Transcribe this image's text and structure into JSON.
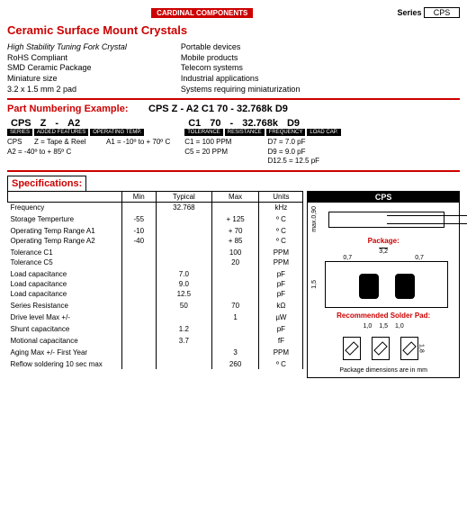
{
  "header": {
    "brand": "CARDINAL COMPONENTS",
    "series_label": "Series",
    "series_value": "CPS"
  },
  "title": "Ceramic Surface Mount Crystals",
  "features_left": [
    "High Stability Tuning Fork Crystal",
    "RoHS Compliant",
    "SMD Ceramic Package",
    "Miniature size",
    "3.2 x 1.5 mm 2 pad"
  ],
  "features_right": [
    "Portable devices",
    "Mobile products",
    "Telecom systems",
    "Industrial applications",
    "Systems requiring miniaturization"
  ],
  "pn": {
    "title": "Part Numbering Example:",
    "example": "CPS Z - A2  C1 70 - 32.768k D9",
    "left": {
      "heads": [
        "CPS",
        "Z",
        "-",
        "A2"
      ],
      "labels": [
        "SERIES",
        "ADDED FEATURES",
        "OPERATING TEMP."
      ],
      "body": [
        "CPS",
        "Z = Tape & Reel",
        "A1 = -10º to + 70º C",
        "A2 = -40º to + 85º C"
      ]
    },
    "right": {
      "heads": [
        "C1",
        "70",
        "-",
        "32.768k",
        "D9"
      ],
      "labels": [
        "TOLERANCE",
        "RESISTANCE",
        "FREQUENCY",
        "LOAD CAP."
      ],
      "body_left": [
        "C1 = 100 PPM",
        "C5 = 20 PPM"
      ],
      "body_right": [
        "D7 = 7.0 pF",
        "D9 = 9.0 pF",
        "D12.5 = 12.5 pF"
      ]
    }
  },
  "spec": {
    "title": "Specifications:",
    "cols": [
      "Min",
      "Typical",
      "Max",
      "Units"
    ],
    "rows": [
      [
        "Frequency",
        "",
        "32.768",
        "",
        "kHz"
      ],
      [
        "",
        "",
        "",
        "",
        ""
      ],
      [
        "Storage Temperture",
        "-55",
        "",
        "+ 125",
        "º C"
      ],
      [
        "",
        "",
        "",
        "",
        ""
      ],
      [
        "Operating Temp Range  A1",
        "-10",
        "",
        "+ 70",
        "º C"
      ],
      [
        "Operating Temp Range  A2",
        "-40",
        "",
        "+ 85",
        "º C"
      ],
      [
        "",
        "",
        "",
        "",
        ""
      ],
      [
        "Tolerance   C1",
        "",
        "",
        "100",
        "PPM"
      ],
      [
        "Tolerance   C5",
        "",
        "",
        "20",
        "PPM"
      ],
      [
        "",
        "",
        "",
        "",
        ""
      ],
      [
        "Load capacitance",
        "",
        "7.0",
        "",
        "pF"
      ],
      [
        "Load capacitance",
        "",
        "9.0",
        "",
        "pF"
      ],
      [
        "Load capacitance",
        "",
        "12.5",
        "",
        "pF"
      ],
      [
        "",
        "",
        "",
        "",
        ""
      ],
      [
        "Series Resistance",
        "",
        "50",
        "70",
        "kΩ"
      ],
      [
        "",
        "",
        "",
        "",
        ""
      ],
      [
        "Drive level Max  +/-",
        "",
        "",
        "1",
        "µW"
      ],
      [
        "",
        "",
        "",
        "",
        ""
      ],
      [
        "Shunt capacitance",
        "",
        "1.2",
        "",
        "pF"
      ],
      [
        "",
        "",
        "",
        "",
        ""
      ],
      [
        "Motional capacitance",
        "",
        "3.7",
        "",
        "fF"
      ],
      [
        "",
        "",
        "",
        "",
        ""
      ],
      [
        "Aging Max +/-  First Year",
        "",
        "",
        "3",
        "PPM"
      ],
      [
        "",
        "",
        "",
        "",
        ""
      ],
      [
        "Reflow soldering 10 sec max",
        "",
        "",
        "260",
        "º C"
      ]
    ]
  },
  "diagram": {
    "title": "CPS",
    "max_h": "max.0,90",
    "package_label": "Package:",
    "dim_w": "3,2",
    "dim_pad": "0,7",
    "dim_h": "1,5",
    "solder_label": "Recommended Solder Pad:",
    "s1": "1,0",
    "s2": "1,5",
    "s3": "1,0",
    "sh": "1,8",
    "footer": "Package dimensions are in mm"
  }
}
